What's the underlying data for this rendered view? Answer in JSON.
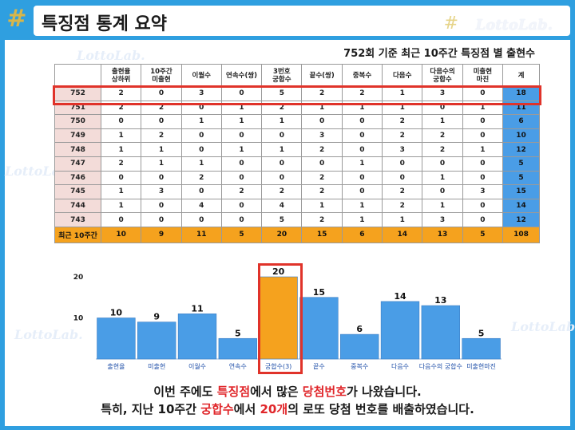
{
  "header": {
    "title": "특징점 통계 요약",
    "brand": "LottoLab.",
    "logo_icon": "hash-star-icon"
  },
  "table": {
    "caption": "752회 기준 최근 10주간 특징점 별 출현수",
    "columns": [
      "",
      "출현율\n상하위",
      "10주간\n미출현",
      "이월수",
      "연속수(쌍)",
      "3번호\n궁합수",
      "끝수(쌍)",
      "중복수",
      "다음수",
      "다음수의\n궁합수",
      "미출현\n마진",
      "계"
    ],
    "rows": [
      {
        "round": "752",
        "values": [
          "2",
          "0",
          "3",
          "0",
          "5",
          "2",
          "2",
          "1",
          "3",
          "0"
        ],
        "total": "18"
      },
      {
        "round": "751",
        "values": [
          "2",
          "2",
          "0",
          "1",
          "2",
          "1",
          "1",
          "1",
          "0",
          "1"
        ],
        "total": "11"
      },
      {
        "round": "750",
        "values": [
          "0",
          "0",
          "1",
          "1",
          "1",
          "0",
          "0",
          "2",
          "1",
          "0"
        ],
        "total": "6"
      },
      {
        "round": "749",
        "values": [
          "1",
          "2",
          "0",
          "0",
          "0",
          "3",
          "0",
          "2",
          "2",
          "0"
        ],
        "total": "10"
      },
      {
        "round": "748",
        "values": [
          "1",
          "1",
          "0",
          "1",
          "1",
          "2",
          "0",
          "3",
          "2",
          "1"
        ],
        "total": "12"
      },
      {
        "round": "747",
        "values": [
          "2",
          "1",
          "1",
          "0",
          "0",
          "0",
          "1",
          "0",
          "0",
          "0"
        ],
        "total": "5"
      },
      {
        "round": "746",
        "values": [
          "0",
          "0",
          "2",
          "0",
          "0",
          "2",
          "0",
          "0",
          "1",
          "0"
        ],
        "total": "5"
      },
      {
        "round": "745",
        "values": [
          "1",
          "3",
          "0",
          "2",
          "2",
          "2",
          "0",
          "2",
          "0",
          "3"
        ],
        "total": "15"
      },
      {
        "round": "744",
        "values": [
          "1",
          "0",
          "4",
          "0",
          "4",
          "1",
          "1",
          "2",
          "1",
          "0"
        ],
        "total": "14"
      },
      {
        "round": "743",
        "values": [
          "0",
          "0",
          "0",
          "0",
          "5",
          "2",
          "1",
          "1",
          "3",
          "0"
        ],
        "total": "12"
      }
    ],
    "summary": {
      "label": "최근 10주간",
      "values": [
        "10",
        "9",
        "11",
        "5",
        "20",
        "15",
        "6",
        "14",
        "13",
        "5"
      ],
      "total": "108"
    }
  },
  "chart_data": {
    "type": "bar",
    "categories": [
      "출현율",
      "미출현",
      "이월수",
      "연속수",
      "궁합수(3)",
      "끝수",
      "중복수",
      "다음수",
      "다음수의 궁합수",
      "미출현마진"
    ],
    "values": [
      10,
      9,
      11,
      5,
      20,
      15,
      6,
      14,
      13,
      5
    ],
    "ylim": [
      0,
      20
    ],
    "yticks": [
      10,
      20
    ],
    "highlight_index": 4,
    "grid": false,
    "colors": {
      "bar": "#4a9de6",
      "highlight": "#f5a21e",
      "label": "#1f4fa8"
    }
  },
  "footer": {
    "line1_a": "이번 주에도 ",
    "line1_hl1": "특징점",
    "line1_b": "에서 많은 ",
    "line1_hl2": "당첨번호",
    "line1_c": "가 나왔습니다.",
    "line2_a": "특히, 지난 10주간 ",
    "line2_hl1": "궁합수",
    "line2_b": "에서 ",
    "line2_hl2": "20개",
    "line2_c": "의 로또 당첨 번호를 배출하였습니다."
  },
  "colors": {
    "accent": "#2f9fe0",
    "highlight_red": "#e0332a",
    "orange": "#f5a21e",
    "blue_total": "#4a9de6"
  }
}
